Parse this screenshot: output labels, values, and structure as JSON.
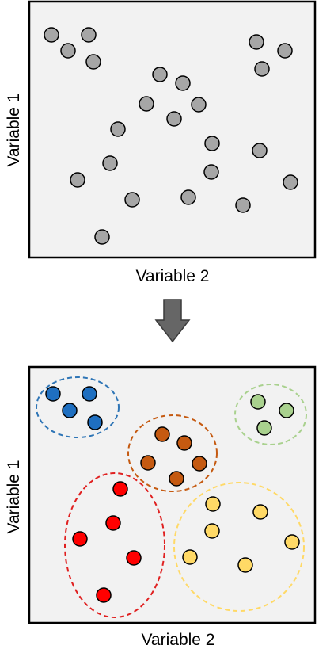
{
  "top_panel": {
    "xlabel": "Variable 2",
    "ylabel": "Variable 1",
    "point_color": "#a6a6a6"
  },
  "arrow": {
    "color": "#666666",
    "direction": "down"
  },
  "bottom_panel": {
    "xlabel": "Variable 2",
    "ylabel": "Variable 1",
    "clusters": [
      {
        "id": "blue",
        "fill": "#1f6fc0",
        "stroke": "#2e75b6"
      },
      {
        "id": "green",
        "fill": "#a9d18e",
        "stroke": "#a9d18e"
      },
      {
        "id": "orange",
        "fill": "#c55a11",
        "stroke": "#c55a11"
      },
      {
        "id": "red",
        "fill": "#ff0000",
        "stroke": "#e02020"
      },
      {
        "id": "yellow",
        "fill": "#ffd966",
        "stroke": "#ffd966"
      }
    ]
  }
}
